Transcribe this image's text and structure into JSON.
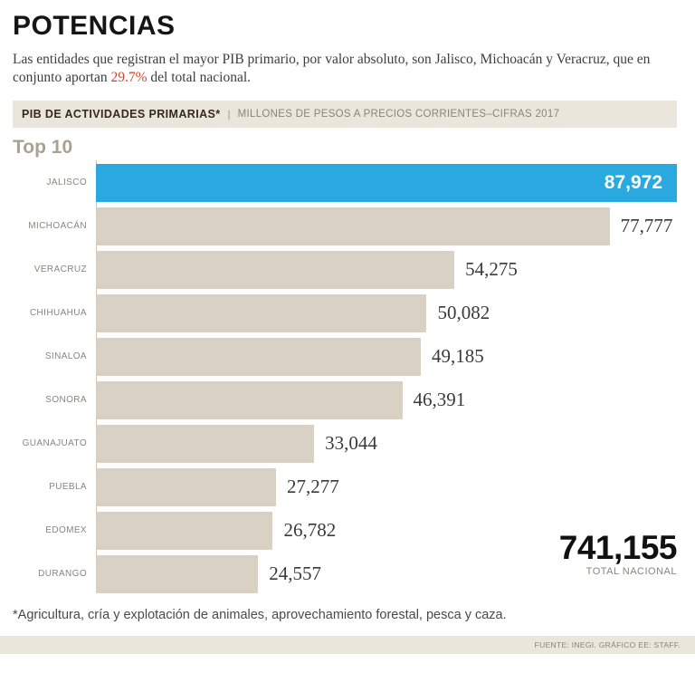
{
  "header": {
    "title": "POTENCIAS",
    "subtitle_part1": "Las entidades que registran el mayor PIB primario, por valor absoluto, son Jalisco, Michoacán y Veracruz, que en conjunto aportan ",
    "subtitle_highlight": "29.7%",
    "subtitle_part2": " del total nacional."
  },
  "strip": {
    "title": "PIB DE ACTIVIDADES PRIMARIAS*",
    "separator": "|",
    "units": "MILLONES DE PESOS A PRECIOS CORRIENTES–CIFRAS 2017"
  },
  "chart_data": {
    "type": "bar",
    "orientation": "horizontal",
    "group_label": "Top 10",
    "categories": [
      "JALISCO",
      "MICHOACÁN",
      "VERACRUZ",
      "CHIHUAHUA",
      "SINALOA",
      "SONORA",
      "GUANAJUATO",
      "PUEBLA",
      "EDOMEX",
      "DURANGO"
    ],
    "values": [
      87972,
      77777,
      54275,
      50082,
      49185,
      46391,
      33044,
      27277,
      26782,
      24557
    ],
    "value_labels": [
      "87,972",
      "77,777",
      "54,275",
      "50,082",
      "49,185",
      "46,391",
      "33,044",
      "27,277",
      "26,782",
      "24,557"
    ],
    "highlight_index": 0,
    "colors": {
      "bar": "#d9d2c4",
      "highlight": "#2aa9e0",
      "value_text": "#3a3a3a",
      "highlight_value_text": "#ffffff"
    },
    "xlim": [
      0,
      87972
    ],
    "grid": "off",
    "legend": "none",
    "total_value": "741,155",
    "total_label": "TOTAL NACIONAL"
  },
  "footer": {
    "footnote": "*Agricultura, cría y explotación de animales, aprovechamiento forestal, pesca y caza.",
    "source": "FUENTE: INEGI. GRÁFICO EE: STAFF."
  }
}
